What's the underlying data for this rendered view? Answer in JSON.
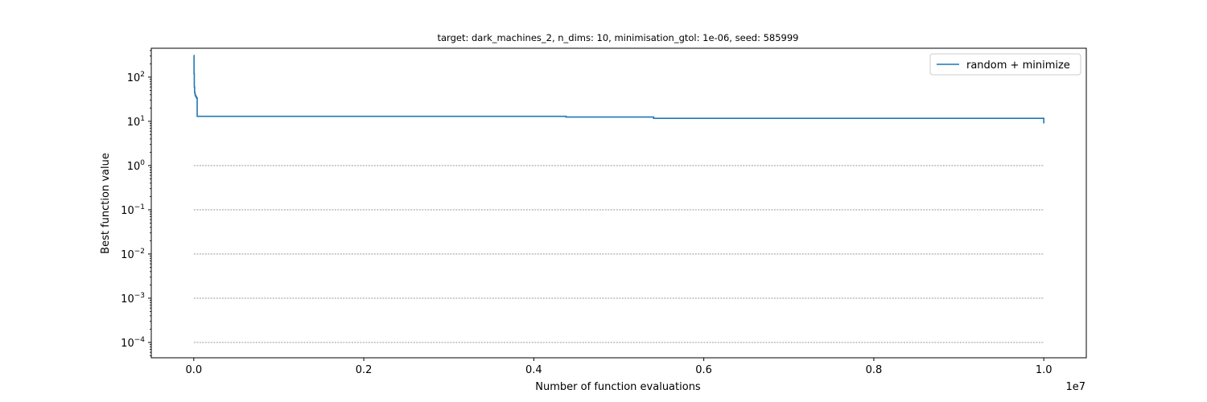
{
  "chart_data": {
    "type": "line",
    "title": "target: dark_machines_2, n_dims: 10, minimisation_gtol: 1e-06, seed: 585999",
    "xlabel": "Number of function evaluations",
    "ylabel": "Best function value",
    "x_offset_text": "1e7",
    "yscale": "log",
    "xlim": [
      -500000,
      10500000
    ],
    "ylim": [
      4.5e-05,
      450
    ],
    "x_ticks": [
      {
        "value": 0,
        "label": "0.0"
      },
      {
        "value": 2000000,
        "label": "0.2"
      },
      {
        "value": 4000000,
        "label": "0.4"
      },
      {
        "value": 6000000,
        "label": "0.6"
      },
      {
        "value": 8000000,
        "label": "0.8"
      },
      {
        "value": 10000000,
        "label": "1.0"
      }
    ],
    "y_ticks": [
      {
        "value": 0.0001,
        "base": "10",
        "exp": "−4"
      },
      {
        "value": 0.001,
        "base": "10",
        "exp": "−3"
      },
      {
        "value": 0.01,
        "base": "10",
        "exp": "−2"
      },
      {
        "value": 0.1,
        "base": "10",
        "exp": "−1"
      },
      {
        "value": 1,
        "base": "10",
        "exp": "0"
      },
      {
        "value": 10,
        "base": "10",
        "exp": "1"
      },
      {
        "value": 100,
        "base": "10",
        "exp": "2"
      }
    ],
    "reference_lines": {
      "values": [
        1,
        0.1,
        0.01,
        0.001,
        0.0001
      ],
      "x_range": [
        0,
        10000000
      ],
      "style": "dotted",
      "color": "#888888"
    },
    "legend_position": "upper right",
    "series": [
      {
        "name": "random + minimize",
        "color": "#1f77b4",
        "step": true,
        "x": [
          0,
          3000,
          6000,
          10000,
          15000,
          20000,
          30000,
          40000,
          4380000,
          5410000,
          10000000
        ],
        "y": [
          310,
          120,
          60,
          45,
          40,
          37,
          34,
          13,
          12.5,
          11.7,
          9
        ]
      }
    ]
  }
}
